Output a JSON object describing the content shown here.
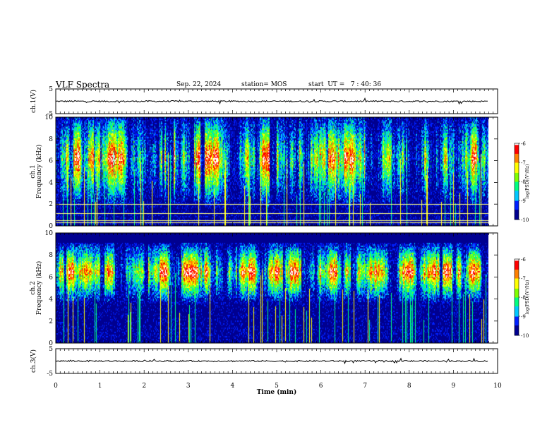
{
  "header": {
    "title": "VLF Spectra",
    "date": "Sep. 22, 2024",
    "station": "station= MOS",
    "start_ut": "start  UT =   7 : 40: 36"
  },
  "chart_data": {
    "type": "heatmap",
    "xlabel": "Time  (min)",
    "xlim": [
      0,
      10
    ],
    "xticks": [
      "0",
      "1",
      "2",
      "3",
      "4",
      "5",
      "6",
      "7",
      "8",
      "9",
      "10"
    ],
    "data_end_min": 9.8,
    "panels": [
      {
        "id": "ch1v",
        "kind": "waveform",
        "ylabel": "ch.1(V)",
        "ylim": [
          -5,
          5
        ],
        "yticks": [
          "5",
          "-5"
        ],
        "baseline": 0
      },
      {
        "id": "ch1",
        "kind": "spectrogram",
        "ylabel_top": "ch.1",
        "ylabel": "Frequency  (kHz)",
        "ylim": [
          0,
          10
        ],
        "yticks": [
          "0",
          "2",
          "4",
          "6",
          "8",
          "10"
        ],
        "peak_band_khz": [
          3,
          9.5
        ]
      },
      {
        "id": "ch2",
        "kind": "spectrogram",
        "ylabel_top": "ch.2",
        "ylabel": "Frequency  (kHz)",
        "ylim": [
          0,
          10
        ],
        "yticks": [
          "0",
          "2",
          "4",
          "6",
          "8",
          "10"
        ],
        "peak_band_khz": [
          5,
          8
        ]
      },
      {
        "id": "ch3v",
        "kind": "waveform",
        "ylabel": "ch.3(V)",
        "ylim": [
          -5,
          5
        ],
        "yticks": [
          "5",
          "-5"
        ],
        "baseline": 0
      }
    ],
    "colorbar": {
      "label": "log(PSD)(V²/Hz)",
      "range": [
        -10,
        -6
      ],
      "ticks": [
        "-6",
        "-7",
        "-8",
        "-9",
        "-10"
      ],
      "colors": [
        "#000090",
        "#0020ff",
        "#00c8ff",
        "#00ff80",
        "#80ff00",
        "#ffff00",
        "#ff8000",
        "#ff0000",
        "#ffffff"
      ]
    }
  }
}
